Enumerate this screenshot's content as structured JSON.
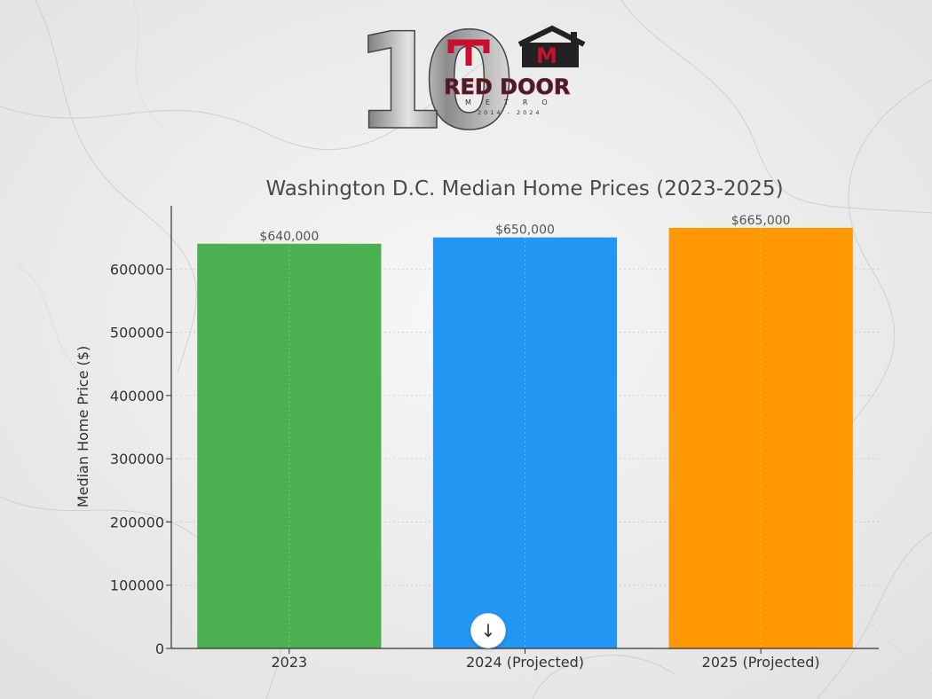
{
  "logo": {
    "numeral": "10",
    "brand": "RED DOOR",
    "sub": "METRO",
    "years": "2014 - 2024",
    "monogram": "M",
    "brand_red": "#c8102e"
  },
  "scroll_button": {
    "icon": "arrow-down-icon",
    "glyph": "↓"
  },
  "chart_data": {
    "type": "bar",
    "title": "Washington D.C. Median Home Prices (2023-2025)",
    "xlabel": "",
    "ylabel": "Median Home Price ($)",
    "categories": [
      "2023",
      "2024 (Projected)",
      "2025 (Projected)"
    ],
    "values": [
      640000,
      650000,
      665000
    ],
    "data_labels": [
      "$640,000",
      "$650,000",
      "$665,000"
    ],
    "colors": [
      "#4caf50",
      "#2196f3",
      "#ff9800"
    ],
    "ylim": [
      0,
      700000
    ],
    "yticks": [
      0,
      100000,
      200000,
      300000,
      400000,
      500000,
      600000
    ],
    "ytick_labels": [
      "0",
      "100000",
      "200000",
      "300000",
      "400000",
      "500000",
      "600000"
    ],
    "grid": true,
    "legend": "none"
  }
}
